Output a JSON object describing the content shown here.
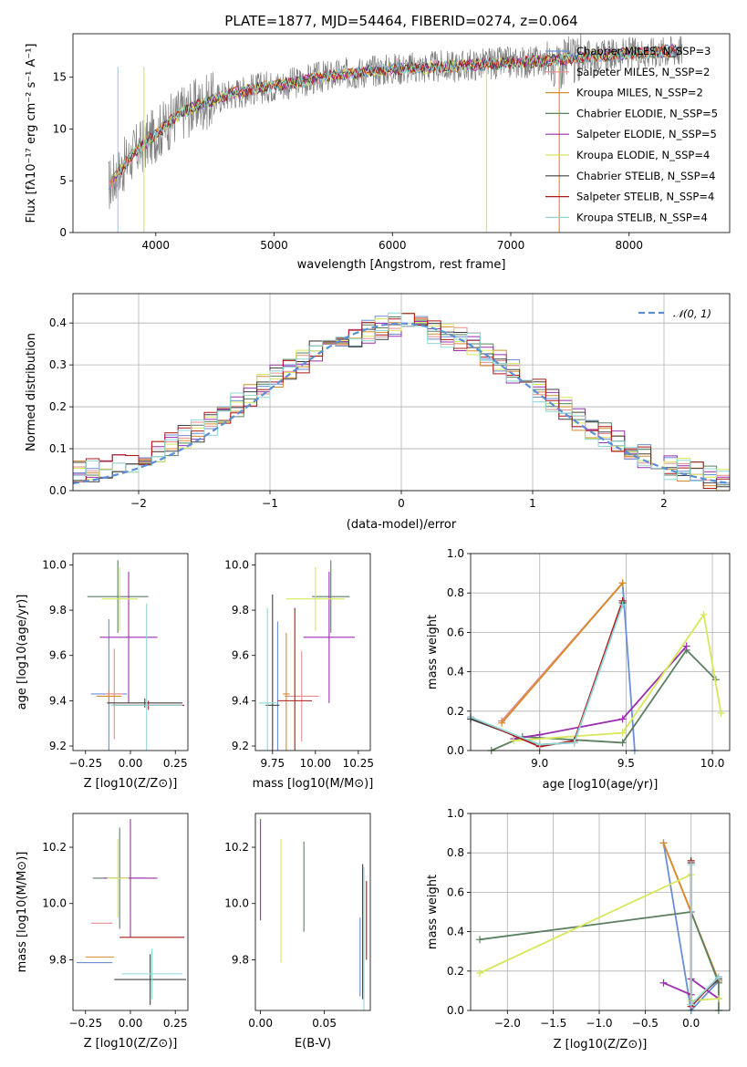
{
  "chart_data": [
    {
      "type": "line",
      "title": "PLATE=1877, MJD=54464, FIBERID=0274, z=0.064",
      "xlabel": "wavelength [Angstrom, rest frame]",
      "ylabel": "Flux [fλ10⁻¹⁷ erg cm⁻² s⁻¹ A⁻¹]",
      "xlim": [
        3300,
        8850
      ],
      "ylim": [
        0,
        19.2
      ],
      "xticks": [
        4000,
        5000,
        6000,
        7000,
        8000
      ],
      "yticks": [
        0,
        5,
        10,
        15
      ],
      "legend_position": "right",
      "grid": false,
      "data_series": {
        "name": "",
        "color": "#808080",
        "x": [
          3600,
          3800,
          4000,
          4200,
          4400,
          4600,
          4800,
          5000,
          5200,
          5400,
          5600,
          5800,
          6000,
          6200,
          6400,
          6600,
          6800,
          7000,
          7200,
          7400,
          7600,
          7800,
          8000,
          8200,
          8400
        ],
        "y": [
          4.5,
          7.5,
          9.5,
          11.5,
          12.5,
          13.3,
          13.8,
          14.2,
          14.5,
          15.0,
          15.3,
          15.6,
          15.8,
          15.9,
          16.0,
          16.1,
          16.3,
          16.4,
          16.5,
          16.7,
          16.9,
          17.1,
          17.3,
          17.4,
          17.6
        ]
      },
      "series": [
        {
          "name": "Chabrier MILES, N_SSP=3",
          "color": "#6a8fd6"
        },
        {
          "name": "Salpeter MILES, N_SSP=2",
          "color": "#e88d8d"
        },
        {
          "name": "Kroupa MILES, N_SSP=2",
          "color": "#d98a2b"
        },
        {
          "name": "Chabrier ELODIE, N_SSP=5",
          "color": "#5a8060"
        },
        {
          "name": "Salpeter ELODIE, N_SSP=5",
          "color": "#9b2fae"
        },
        {
          "name": "Kroupa ELODIE, N_SSP=4",
          "color": "#d6e85a"
        },
        {
          "name": "Chabrier STELIB, N_SSP=4",
          "color": "#404040"
        },
        {
          "name": "Salpeter STELIB, N_SSP=4",
          "color": "#b01818"
        },
        {
          "name": "Kroupa STELIB, N_SSP=4",
          "color": "#8fd8d8"
        }
      ]
    },
    {
      "type": "bar",
      "xlabel": "(data-model)/error",
      "ylabel": "Normed distribution",
      "xlim": [
        -2.5,
        2.5
      ],
      "ylim": [
        0,
        0.47
      ],
      "xticks": [
        -2,
        -1,
        0,
        1,
        2
      ],
      "yticks": [
        0.0,
        0.1,
        0.2,
        0.3,
        0.4
      ],
      "grid": true,
      "legend": {
        "label": "𝒩(0, 1)",
        "color": "#5a8fd6",
        "position": "top-right"
      },
      "bin_width": 0.1,
      "hist_envelope": {
        "x": [
          -2.5,
          -2.0,
          -1.5,
          -1.0,
          -0.5,
          0.0,
          0.5,
          1.0,
          1.5,
          2.0,
          2.5
        ],
        "y": [
          0.04,
          0.07,
          0.15,
          0.26,
          0.36,
          0.4,
          0.36,
          0.25,
          0.14,
          0.06,
          0.02
        ]
      }
    },
    {
      "type": "scatter",
      "xlabel": "Z [log10(Z/Z⊙)]",
      "ylabel": "age  [log10(age/yr)]",
      "xlim": [
        -0.32,
        0.32
      ],
      "ylim": [
        9.18,
        10.05
      ],
      "xticks": [
        -0.25,
        0.0,
        0.25
      ],
      "yticks": [
        9.2,
        9.4,
        9.6,
        9.8,
        10.0
      ],
      "points": [
        {
          "series": "Chabrier MILES",
          "x": -0.12,
          "y": 9.43,
          "xerr": 0.1,
          "yerr": 0.33
        },
        {
          "series": "Salpeter MILES",
          "x": -0.09,
          "y": 9.43,
          "xerr": 0.05,
          "yerr": 0.2
        },
        {
          "series": "Kroupa MILES",
          "x": -0.12,
          "y": 9.42,
          "xerr": 0.07,
          "yerr": 0.03
        },
        {
          "series": "Chabrier ELODIE",
          "x": -0.07,
          "y": 9.86,
          "xerr": 0.17,
          "yerr": 0.16
        },
        {
          "series": "Salpeter ELODIE",
          "x": -0.01,
          "y": 9.68,
          "xerr": 0.16,
          "yerr": 0.29
        },
        {
          "series": "Kroupa ELODIE",
          "x": -0.06,
          "y": 9.85,
          "xerr": 0.1,
          "yerr": 0.14
        },
        {
          "series": "Chabrier STELIB",
          "x": 0.08,
          "y": 9.39,
          "xerr": 0.21,
          "yerr": 0.02
        },
        {
          "series": "Salpeter STELIB",
          "x": 0.1,
          "y": 9.38,
          "xerr": 0.2,
          "yerr": 0.02
        },
        {
          "series": "Kroupa STELIB",
          "x": 0.09,
          "y": 9.38,
          "xerr": 0.2,
          "yerr": 0.45
        }
      ]
    },
    {
      "type": "scatter",
      "xlabel": "mass [log10(M/M⊙)]",
      "xlim": [
        9.65,
        10.32
      ],
      "ylim": [
        9.18,
        10.05
      ],
      "xticks": [
        9.75,
        10.0,
        10.25
      ],
      "yticks": [
        9.2,
        9.4,
        9.6,
        9.8,
        10.0
      ],
      "points": [
        {
          "series": "Chabrier MILES",
          "x": 9.78,
          "y": 9.38,
          "xerr": 0.0,
          "yerr": 0.37
        },
        {
          "series": "Salpeter MILES",
          "x": 9.92,
          "y": 9.42,
          "xerr": 0.1,
          "yerr": 0.2
        },
        {
          "series": "Kroupa MILES",
          "x": 9.83,
          "y": 9.43,
          "xerr": 0.02,
          "yerr": 0.27
        },
        {
          "series": "Chabrier ELODIE",
          "x": 10.09,
          "y": 9.86,
          "xerr": 0.11,
          "yerr": 0.16
        },
        {
          "series": "Salpeter ELODIE",
          "x": 10.08,
          "y": 9.68,
          "xerr": 0.15,
          "yerr": 0.29
        },
        {
          "series": "Kroupa ELODIE",
          "x": 10.0,
          "y": 9.85,
          "xerr": 0.17,
          "yerr": 0.14
        },
        {
          "series": "Chabrier STELIB",
          "x": 9.75,
          "y": 9.38,
          "xerr": 0.04,
          "yerr": 0.49
        },
        {
          "series": "Salpeter STELIB",
          "x": 9.88,
          "y": 9.4,
          "xerr": 0.1,
          "yerr": 0.41
        },
        {
          "series": "Kroupa STELIB",
          "x": 9.72,
          "y": 9.39,
          "xerr": 0.05,
          "yerr": 0.42
        }
      ]
    },
    {
      "type": "line",
      "xlabel": "age  [log10(age/yr)]",
      "ylabel": "mass weight",
      "xlim": [
        8.6,
        10.1
      ],
      "ylim": [
        0.0,
        1.0
      ],
      "xticks": [
        9.0,
        9.5,
        10.0
      ],
      "yticks": [
        0.0,
        0.2,
        0.4,
        0.6,
        0.8,
        1.0
      ],
      "grid": true,
      "series": [
        {
          "name": "Chabrier MILES",
          "x": [
            8.78,
            9.48,
            9.55
          ],
          "y": [
            0.15,
            0.85,
            0.0
          ]
        },
        {
          "name": "Salpeter MILES",
          "x": [
            8.78,
            9.48
          ],
          "y": [
            0.15,
            0.85
          ]
        },
        {
          "name": "Kroupa MILES",
          "x": [
            8.78,
            9.48
          ],
          "y": [
            0.14,
            0.85
          ]
        },
        {
          "name": "Chabrier ELODIE",
          "x": [
            8.72,
            8.9,
            9.48,
            9.85,
            10.02
          ],
          "y": [
            0.0,
            0.07,
            0.04,
            0.51,
            0.36
          ]
        },
        {
          "name": "Salpeter ELODIE",
          "x": [
            8.85,
            9.0,
            9.48,
            9.85
          ],
          "y": [
            0.06,
            0.08,
            0.16,
            0.53
          ]
        },
        {
          "name": "Kroupa ELODIE",
          "x": [
            8.85,
            9.48,
            9.95,
            10.05
          ],
          "y": [
            0.05,
            0.09,
            0.69,
            0.19
          ]
        },
        {
          "name": "Chabrier STELIB",
          "x": [
            8.6,
            9.0,
            9.2,
            9.48
          ],
          "y": [
            0.16,
            0.03,
            0.04,
            0.75
          ]
        },
        {
          "name": "Salpeter STELIB",
          "x": [
            8.6,
            9.0,
            9.2,
            9.48
          ],
          "y": [
            0.17,
            0.02,
            0.05,
            0.76
          ]
        },
        {
          "name": "Kroupa STELIB",
          "x": [
            8.6,
            9.0,
            9.2,
            9.48
          ],
          "y": [
            0.17,
            0.03,
            0.04,
            0.74
          ]
        }
      ]
    },
    {
      "type": "scatter",
      "xlabel": "Z [log10(Z/Z⊙)]",
      "ylabel": "mass [log10(M/M⊙)]",
      "xlim": [
        -0.32,
        0.32
      ],
      "ylim": [
        9.62,
        10.32
      ],
      "xticks": [
        -0.25,
        0.0,
        0.25
      ],
      "yticks": [
        9.8,
        10.0,
        10.2
      ],
      "points": [
        {
          "series": "Chabrier MILES",
          "x": -0.2,
          "y": 9.79,
          "xerr": 0.1,
          "yerr": 0.0
        },
        {
          "series": "Salpeter MILES",
          "x": -0.16,
          "y": 9.93,
          "xerr": 0.06,
          "yerr": 0.0
        },
        {
          "series": "Kroupa MILES",
          "x": -0.17,
          "y": 9.81,
          "xerr": 0.08,
          "yerr": 0.0
        },
        {
          "series": "Chabrier ELODIE",
          "x": -0.06,
          "y": 10.09,
          "xerr": 0.15,
          "yerr": 0.18
        },
        {
          "series": "Salpeter ELODIE",
          "x": 0.0,
          "y": 10.09,
          "xerr": 0.15,
          "yerr": 0.21
        },
        {
          "series": "Kroupa ELODIE",
          "x": -0.07,
          "y": 10.09,
          "xerr": 0.06,
          "yerr": 0.14
        },
        {
          "series": "Chabrier STELIB",
          "x": 0.11,
          "y": 9.73,
          "xerr": 0.2,
          "yerr": 0.09
        },
        {
          "series": "Salpeter STELIB",
          "x": 0.12,
          "y": 9.88,
          "xerr": 0.18,
          "yerr": 0.0
        },
        {
          "series": "Kroupa STELIB",
          "x": 0.12,
          "y": 9.75,
          "xerr": 0.17,
          "yerr": 0.09
        }
      ]
    },
    {
      "type": "scatter",
      "xlabel": "E(B-V)",
      "xlim": [
        -0.004,
        0.086
      ],
      "ylim": [
        9.62,
        10.32
      ],
      "xticks": [
        0.0,
        0.05
      ],
      "yticks": [
        9.8,
        10.0,
        10.2
      ],
      "points": [
        {
          "series": "Salpeter ELODIE",
          "x": 0.0,
          "y": 10.12,
          "xerr": 0,
          "yerr": 0.18
        },
        {
          "series": "Kroupa ELODIE",
          "x": 0.016,
          "y": 10.01,
          "xerr": 0,
          "yerr": 0.22
        },
        {
          "series": "Chabrier ELODIE",
          "x": 0.034,
          "y": 10.06,
          "xerr": 0,
          "yerr": 0.16
        },
        {
          "series": "Chabrier MILES",
          "x": 0.078,
          "y": 9.81,
          "xerr": 0,
          "yerr": 0.14
        },
        {
          "series": "Chabrier STELIB",
          "x": 0.08,
          "y": 9.9,
          "xerr": 0,
          "yerr": 0.24
        },
        {
          "series": "Kroupa STELIB",
          "x": 0.081,
          "y": 9.85,
          "xerr": 0,
          "yerr": 0.28
        },
        {
          "series": "Salpeter STELIB",
          "x": 0.083,
          "y": 9.94,
          "xerr": 0,
          "yerr": 0.14
        }
      ]
    },
    {
      "type": "line",
      "xlabel": "Z [log10(Z/Z⊙)]",
      "ylabel": "mass weight",
      "xlim": [
        -2.4,
        0.42
      ],
      "ylim": [
        0.0,
        1.0
      ],
      "xticks": [
        -2.0,
        -1.5,
        -1.0,
        -0.5,
        0.0
      ],
      "yticks": [
        0.0,
        0.2,
        0.4,
        0.6,
        0.8,
        1.0
      ],
      "grid": true,
      "series": [
        {
          "name": "Chabrier MILES",
          "x": [
            -0.3,
            0.0,
            0.3
          ],
          "y": [
            0.85,
            0.0,
            0.15
          ]
        },
        {
          "name": "Salpeter MILES",
          "x": [
            -0.3,
            0.3
          ],
          "y": [
            0.85,
            0.15
          ]
        },
        {
          "name": "Kroupa MILES",
          "x": [
            -0.3,
            0.3
          ],
          "y": [
            0.85,
            0.15
          ]
        },
        {
          "name": "Chabrier ELODIE",
          "x": [
            -2.3,
            0.0,
            0.3,
            0.3
          ],
          "y": [
            0.36,
            0.5,
            0.14,
            0.0
          ]
        },
        {
          "name": "Salpeter ELODIE",
          "x": [
            -0.3,
            0.0,
            0.0,
            0.3
          ],
          "y": [
            0.14,
            0.08,
            0.16,
            0.06
          ]
        },
        {
          "name": "Kroupa ELODIE",
          "x": [
            -2.3,
            0.0,
            0.0,
            0.3
          ],
          "y": [
            0.19,
            0.69,
            0.05,
            0.06
          ]
        },
        {
          "name": "Chabrier STELIB",
          "x": [
            0.0,
            0.0,
            0.3
          ],
          "y": [
            0.75,
            0.03,
            0.16
          ]
        },
        {
          "name": "Salpeter STELIB",
          "x": [
            0.0,
            0.0,
            0.3
          ],
          "y": [
            0.76,
            0.02,
            0.17
          ]
        },
        {
          "name": "Kroupa STELIB",
          "x": [
            0.0,
            0.0,
            0.3
          ],
          "y": [
            0.74,
            0.03,
            0.17
          ]
        }
      ]
    }
  ]
}
